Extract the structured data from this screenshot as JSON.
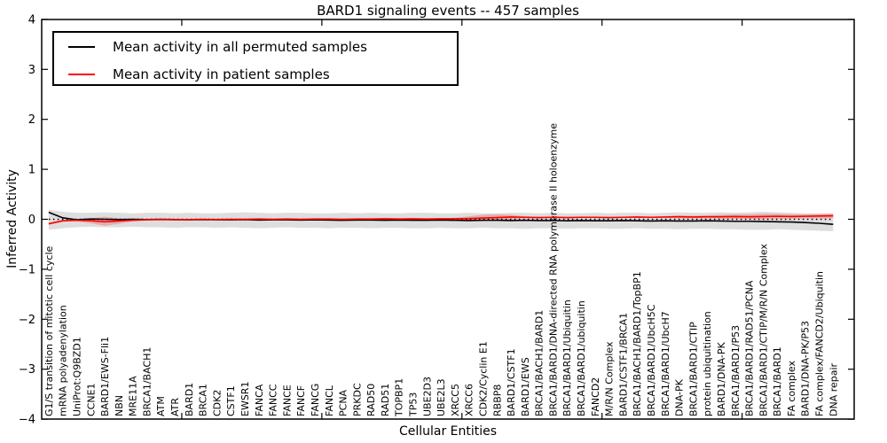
{
  "title": "BARD1 signaling events -- 457 samples",
  "axes": {
    "ylabel": "Inferred Activity",
    "xlabel": "Cellular Entities",
    "yticks": [
      4,
      3,
      2,
      1,
      0,
      -1,
      -2,
      -3,
      -4
    ],
    "ytick_labels": [
      "4",
      "3",
      "2",
      "1",
      "0",
      "−1",
      "−2",
      "−3",
      "−4"
    ],
    "xtick_positions": [
      10,
      20,
      30,
      40,
      50
    ]
  },
  "legend": {
    "items": [
      {
        "label": "Mean activity in all permuted samples",
        "color": "#000000"
      },
      {
        "label": "Mean activity in patient samples",
        "color": "#ff0000"
      }
    ]
  },
  "chart_data": {
    "type": "line",
    "title": "BARD1 signaling events -- 457 samples",
    "xlabel": "Cellular Entities",
    "ylabel": "Inferred Activity",
    "ylim": [
      -4,
      4
    ],
    "grid": false,
    "legend_position": "upper left",
    "zero_line": {
      "style": "dotted",
      "color": "#000000",
      "y": 0
    },
    "categories": [
      "G1/S transition of mitotic cell cycle",
      "mRNA polyadenylation",
      "UniProt:Q9BZD1",
      "CCNE1",
      "BARD1/EWS-Fli1",
      "NBN",
      "MRE11A",
      "BRCA1/BACH1",
      "ATM",
      "ATR",
      "BARD1",
      "BRCA1",
      "CDK2",
      "CSTF1",
      "EWSR1",
      "FANCA",
      "FANCC",
      "FANCE",
      "FANCF",
      "FANCG",
      "FANCL",
      "PCNA",
      "PRKDC",
      "RAD50",
      "RAD51",
      "TOPBP1",
      "TP53",
      "UBE2D3",
      "UBE2L3",
      "XRCC5",
      "XRCC6",
      "CDK2/Cyclin E1",
      "RBBP8",
      "BARD1/CSTF1",
      "BARD1/EWS",
      "BRCA1/BACH1/BARD1",
      "BRCA1/BARD1/DNA-directed RNA polymerase II holoenzyme",
      "BRCA1/BARD1/Ubiquitin",
      "BRCA1/BARD1/ubiquitin",
      "FANCD2",
      "M/R/N Complex",
      "BARD1/CSTF1/BRCA1",
      "BRCA1/BACH1/BARD1/TopBP1",
      "BRCA1/BARD1/UbcH5C",
      "BRCA1/BARD1/UbcH7",
      "DNA-PK",
      "BRCA1/BARD1/CTIP",
      "protein ubiquitination",
      "BARD1/DNA-PK",
      "BRCA1/BARD1/P53",
      "BRCA1/BARD1/RAD51/PCNA",
      "BRCA1/BARD1/CTIP/M/R/N Complex",
      "BRCA1/BARD1",
      "FA complex",
      "BARD1/DNA-PK/P53",
      "FA complex/FANCD2/Ubiquitin",
      "DNA repair"
    ],
    "series": [
      {
        "name": "Mean activity in all permuted samples",
        "color": "#000000",
        "values": [
          0.14,
          0.03,
          -0.01,
          0.005,
          0.0,
          -0.005,
          0.0,
          -0.005,
          0.0,
          -0.005,
          -0.01,
          -0.005,
          -0.01,
          -0.01,
          -0.005,
          -0.015,
          -0.01,
          -0.01,
          -0.015,
          -0.01,
          -0.015,
          -0.02,
          -0.015,
          -0.015,
          -0.02,
          -0.015,
          -0.02,
          -0.02,
          -0.015,
          -0.02,
          -0.025,
          -0.02,
          -0.02,
          -0.025,
          -0.02,
          -0.025,
          -0.025,
          -0.03,
          -0.025,
          -0.03,
          -0.03,
          -0.025,
          -0.03,
          -0.035,
          -0.03,
          -0.035,
          -0.035,
          -0.03,
          -0.035,
          -0.04,
          -0.04,
          -0.045,
          -0.05,
          -0.055,
          -0.065,
          -0.08,
          -0.1
        ]
      },
      {
        "name": "Mean activity in patient samples",
        "color": "#ff0000",
        "values": [
          -0.09,
          -0.03,
          -0.02,
          -0.03,
          -0.05,
          -0.035,
          -0.02,
          -0.01,
          -0.005,
          -0.01,
          -0.005,
          0.0,
          -0.005,
          0.0,
          0.0,
          0.005,
          0.0,
          0.005,
          0.0,
          0.005,
          0.005,
          0.0,
          0.005,
          0.005,
          0.01,
          0.005,
          0.01,
          0.005,
          0.01,
          0.01,
          0.015,
          0.025,
          0.035,
          0.045,
          0.04,
          0.035,
          0.04,
          0.035,
          0.04,
          0.04,
          0.035,
          0.04,
          0.045,
          0.04,
          0.045,
          0.05,
          0.045,
          0.05,
          0.05,
          0.055,
          0.05,
          0.055,
          0.06,
          0.055,
          0.06,
          0.065,
          0.07
        ]
      }
    ],
    "bands": [
      {
        "name": "permuted samples spread",
        "color": "#888888",
        "opacity": 0.28,
        "upper": [
          0.19,
          0.15,
          0.13,
          0.13,
          0.14,
          0.13,
          0.12,
          0.13,
          0.13,
          0.12,
          0.13,
          0.12,
          0.12,
          0.13,
          0.14,
          0.13,
          0.12,
          0.13,
          0.13,
          0.12,
          0.12,
          0.13,
          0.12,
          0.13,
          0.12,
          0.12,
          0.13,
          0.13,
          0.12,
          0.12,
          0.13,
          0.12,
          0.12,
          0.13,
          0.13,
          0.12,
          0.13,
          0.12,
          0.12,
          0.13,
          0.12,
          0.13,
          0.13,
          0.12,
          0.13,
          0.14,
          0.13,
          0.13,
          0.14,
          0.13,
          0.14,
          0.15,
          0.14,
          0.13,
          0.12,
          0.11,
          0.11
        ],
        "lower": [
          -0.21,
          -0.18,
          -0.16,
          -0.15,
          -0.16,
          -0.16,
          -0.15,
          -0.16,
          -0.16,
          -0.17,
          -0.16,
          -0.16,
          -0.17,
          -0.16,
          -0.17,
          -0.18,
          -0.17,
          -0.16,
          -0.17,
          -0.17,
          -0.18,
          -0.17,
          -0.17,
          -0.18,
          -0.17,
          -0.17,
          -0.18,
          -0.18,
          -0.17,
          -0.18,
          -0.18,
          -0.17,
          -0.18,
          -0.18,
          -0.19,
          -0.18,
          -0.18,
          -0.19,
          -0.18,
          -0.18,
          -0.19,
          -0.19,
          -0.18,
          -0.19,
          -0.19,
          -0.2,
          -0.19,
          -0.19,
          -0.2,
          -0.2,
          -0.21,
          -0.21,
          -0.2,
          -0.21,
          -0.22,
          -0.23,
          -0.24
        ]
      },
      {
        "name": "patient samples spread",
        "color": "#ff0000",
        "opacity": 0.22,
        "upper": [
          -0.07,
          -0.01,
          0.0,
          0.02,
          0.05,
          0.02,
          0.0,
          0.0,
          0.005,
          0.0,
          0.005,
          0.01,
          0.005,
          0.01,
          0.01,
          0.015,
          0.01,
          0.015,
          0.01,
          0.015,
          0.015,
          0.01,
          0.015,
          0.015,
          0.02,
          0.015,
          0.02,
          0.015,
          0.02,
          0.03,
          0.06,
          0.09,
          0.1,
          0.09,
          0.06,
          0.05,
          0.05,
          0.045,
          0.05,
          0.05,
          0.045,
          0.05,
          0.06,
          0.05,
          0.06,
          0.08,
          0.07,
          0.08,
          0.09,
          0.1,
          0.1,
          0.11,
          0.11,
          0.1,
          0.1,
          0.11,
          0.12
        ],
        "lower": [
          -0.11,
          -0.05,
          -0.04,
          -0.08,
          -0.13,
          -0.09,
          -0.04,
          -0.02,
          -0.015,
          -0.02,
          -0.015,
          -0.01,
          -0.015,
          -0.01,
          -0.01,
          -0.005,
          -0.01,
          -0.005,
          -0.01,
          -0.005,
          -0.005,
          -0.01,
          -0.005,
          -0.005,
          0.0,
          -0.005,
          0.0,
          -0.005,
          0.0,
          -0.01,
          -0.02,
          -0.03,
          -0.02,
          0.0,
          0.02,
          0.02,
          0.03,
          0.025,
          0.03,
          0.03,
          0.025,
          0.03,
          0.03,
          0.03,
          0.03,
          0.02,
          0.02,
          0.02,
          0.01,
          0.01,
          0.0,
          0.0,
          0.01,
          0.01,
          0.02,
          0.02,
          0.02
        ]
      }
    ]
  }
}
